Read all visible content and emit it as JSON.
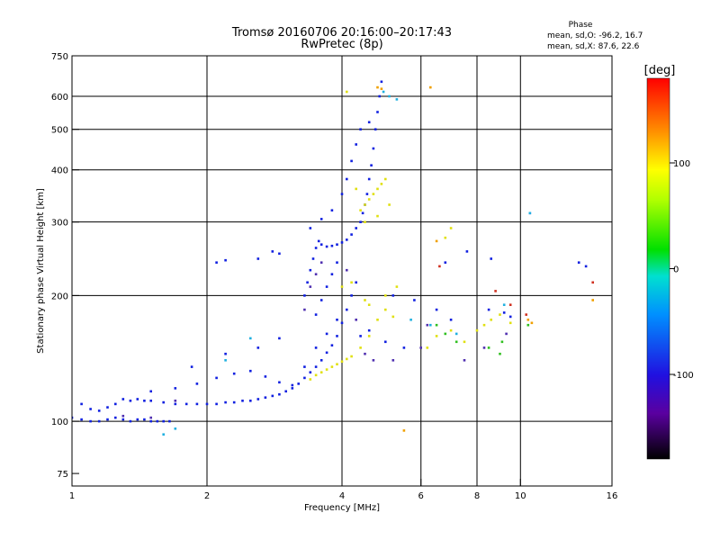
{
  "header": {
    "title_line1": "Tromsø 20160706 20:16:00–20:17:43",
    "title_line2": "RwPretec (8p)"
  },
  "phase_stats": {
    "heading": "Phase",
    "line_o": "mean, sd,O: -96.2, 16.7",
    "line_x": "mean, sd,X: 87.6, 22.6"
  },
  "colorbar": {
    "unit": "[deg]",
    "ticks": [
      {
        "value": 100,
        "label": "100"
      },
      {
        "value": 0,
        "label": "0"
      },
      {
        "value": -100,
        "label": "-100"
      }
    ],
    "range": [
      -180,
      180
    ]
  },
  "chart_data": {
    "type": "scatter",
    "xlabel": "Frequency [MHz]",
    "ylabel": "Stationary phase Virtual Height [km]",
    "xscale": "log",
    "yscale": "log",
    "xlim": [
      1,
      16
    ],
    "ylim": [
      70,
      750
    ],
    "xticks": [
      {
        "value": 1,
        "label": "1"
      },
      {
        "value": 2,
        "label": "2"
      },
      {
        "value": 4,
        "label": "4"
      },
      {
        "value": 6,
        "label": "6"
      },
      {
        "value": 8,
        "label": "8"
      },
      {
        "value": 10,
        "label": "10"
      },
      {
        "value": 16,
        "label": "16"
      }
    ],
    "xgrid": [
      2,
      4,
      6,
      8,
      10
    ],
    "yticks": [
      {
        "value": 75,
        "label": "75"
      },
      {
        "value": 100,
        "label": "100"
      },
      {
        "value": 200,
        "label": "200"
      },
      {
        "value": 300,
        "label": "300"
      },
      {
        "value": 400,
        "label": "400"
      },
      {
        "value": 500,
        "label": "500"
      },
      {
        "value": 600,
        "label": "600"
      },
      {
        "value": 750,
        "label": "750"
      }
    ],
    "ygrid": [
      100,
      200,
      300,
      400,
      500,
      600
    ],
    "grid": true,
    "color_variable": "phase [deg]",
    "series": [
      {
        "color": "#1020e0",
        "points": [
          [
            1,
            102
          ],
          [
            1.05,
            101
          ],
          [
            1.1,
            100
          ],
          [
            1.15,
            100
          ],
          [
            1.2,
            101
          ],
          [
            1.25,
            102
          ],
          [
            1.3,
            101
          ],
          [
            1.35,
            100
          ],
          [
            1.4,
            101
          ],
          [
            1.45,
            101
          ],
          [
            1.5,
            100
          ],
          [
            1.55,
            100
          ],
          [
            1.6,
            100
          ],
          [
            1.65,
            100
          ],
          [
            1.05,
            110
          ],
          [
            1.1,
            107
          ],
          [
            1.15,
            106
          ],
          [
            1.2,
            108
          ],
          [
            1.25,
            110
          ],
          [
            1.3,
            113
          ],
          [
            1.35,
            112
          ],
          [
            1.4,
            113
          ],
          [
            1.45,
            112
          ],
          [
            1.5,
            112
          ],
          [
            1.6,
            111
          ],
          [
            1.7,
            110
          ],
          [
            1.8,
            110
          ],
          [
            1.9,
            110
          ],
          [
            2,
            110
          ],
          [
            2.1,
            110
          ],
          [
            2.2,
            111
          ],
          [
            2.3,
            111
          ],
          [
            2.4,
            112
          ],
          [
            2.5,
            112
          ],
          [
            2.6,
            113
          ],
          [
            2.7,
            114
          ],
          [
            2.8,
            115
          ],
          [
            2.9,
            116
          ],
          [
            3,
            118
          ],
          [
            3.1,
            120
          ],
          [
            3.2,
            123
          ],
          [
            3.3,
            127
          ],
          [
            3.4,
            131
          ],
          [
            3.5,
            135
          ],
          [
            3.6,
            140
          ],
          [
            3.7,
            146
          ],
          [
            3.8,
            152
          ],
          [
            3.9,
            160
          ],
          [
            4,
            172
          ],
          [
            4.1,
            185
          ],
          [
            4.2,
            200
          ],
          [
            4.3,
            215
          ],
          [
            1.5,
            118
          ],
          [
            1.7,
            120
          ],
          [
            1.9,
            123
          ],
          [
            2.1,
            127
          ],
          [
            2.3,
            130
          ],
          [
            2.5,
            132
          ],
          [
            2.7,
            128
          ],
          [
            2.9,
            124
          ],
          [
            3.1,
            122
          ],
          [
            3.3,
            135
          ],
          [
            3.5,
            150
          ],
          [
            3.7,
            162
          ],
          [
            3.9,
            175
          ],
          [
            3.3,
            200
          ],
          [
            3.35,
            215
          ],
          [
            3.4,
            230
          ],
          [
            3.45,
            245
          ],
          [
            3.5,
            260
          ],
          [
            3.55,
            270
          ],
          [
            3.6,
            265
          ],
          [
            3.7,
            262
          ],
          [
            3.8,
            263
          ],
          [
            3.9,
            265
          ],
          [
            4,
            268
          ],
          [
            4.1,
            272
          ],
          [
            4.2,
            280
          ],
          [
            4.3,
            290
          ],
          [
            4.4,
            300
          ],
          [
            4.45,
            315
          ],
          [
            4.5,
            330
          ],
          [
            4.55,
            350
          ],
          [
            4.6,
            380
          ],
          [
            4.65,
            410
          ],
          [
            4.7,
            450
          ],
          [
            4.75,
            500
          ],
          [
            4.8,
            550
          ],
          [
            4.85,
            600
          ],
          [
            4.9,
            650
          ],
          [
            3.8,
            320
          ],
          [
            4,
            350
          ],
          [
            4.1,
            380
          ],
          [
            4.2,
            420
          ],
          [
            4.3,
            460
          ],
          [
            4.4,
            500
          ],
          [
            4.6,
            520
          ],
          [
            3.5,
            180
          ],
          [
            3.6,
            195
          ],
          [
            3.7,
            210
          ],
          [
            3.8,
            225
          ],
          [
            3.9,
            240
          ],
          [
            3.4,
            290
          ],
          [
            3.6,
            305
          ],
          [
            2.1,
            240
          ],
          [
            2.2,
            243
          ],
          [
            2.8,
            255
          ],
          [
            2.9,
            252
          ],
          [
            2.6,
            245
          ],
          [
            1.85,
            135
          ],
          [
            2.2,
            145
          ],
          [
            2.6,
            150
          ],
          [
            2.9,
            158
          ],
          [
            4.4,
            160
          ],
          [
            4.6,
            165
          ],
          [
            5,
            155
          ],
          [
            5.5,
            150
          ],
          [
            6.5,
            185
          ],
          [
            7,
            175
          ],
          [
            8.5,
            185
          ],
          [
            9.2,
            182
          ],
          [
            9.5,
            178
          ],
          [
            5.2,
            200
          ],
          [
            5.8,
            195
          ],
          [
            6.8,
            240
          ],
          [
            8.6,
            245
          ],
          [
            7.6,
            255
          ],
          [
            10.5,
            315
          ],
          [
            13.5,
            240
          ],
          [
            14,
            235
          ]
        ]
      },
      {
        "color": "#5030b0",
        "points": [
          [
            1.3,
            103
          ],
          [
            1.5,
            102
          ],
          [
            1.7,
            112
          ],
          [
            3.3,
            185
          ],
          [
            3.4,
            210
          ],
          [
            3.5,
            225
          ],
          [
            3.6,
            240
          ],
          [
            4.1,
            230
          ],
          [
            4.3,
            175
          ],
          [
            4.5,
            145
          ],
          [
            4.7,
            140
          ],
          [
            5.2,
            140
          ],
          [
            6,
            150
          ],
          [
            6.2,
            170
          ],
          [
            7.5,
            140
          ],
          [
            8.3,
            150
          ],
          [
            9.3,
            162
          ]
        ]
      },
      {
        "color": "#20b0e0",
        "points": [
          [
            1.7,
            96
          ],
          [
            1.6,
            93
          ],
          [
            2.2,
            140
          ],
          [
            2.5,
            158
          ],
          [
            4.95,
            615
          ],
          [
            5.1,
            600
          ],
          [
            5.3,
            590
          ],
          [
            5.7,
            175
          ],
          [
            6.3,
            170
          ],
          [
            7.2,
            162
          ],
          [
            9.2,
            190
          ],
          [
            10.5,
            315
          ]
        ]
      },
      {
        "color": "#e0e010",
        "points": [
          [
            3.4,
            126
          ],
          [
            3.5,
            129
          ],
          [
            3.6,
            131
          ],
          [
            3.7,
            133
          ],
          [
            3.8,
            135
          ],
          [
            3.9,
            137
          ],
          [
            4,
            139
          ],
          [
            4.1,
            141
          ],
          [
            4.2,
            143
          ],
          [
            4.4,
            150
          ],
          [
            4.6,
            160
          ],
          [
            4.8,
            175
          ],
          [
            5,
            185
          ],
          [
            5.2,
            178
          ],
          [
            4.4,
            320
          ],
          [
            4.5,
            330
          ],
          [
            4.6,
            340
          ],
          [
            4.7,
            350
          ],
          [
            4.8,
            360
          ],
          [
            4.9,
            370
          ],
          [
            5,
            380
          ],
          [
            4.3,
            360
          ],
          [
            4.5,
            300
          ],
          [
            4.8,
            310
          ],
          [
            5.1,
            330
          ],
          [
            4,
            210
          ],
          [
            4.2,
            215
          ],
          [
            4.5,
            195
          ],
          [
            4.6,
            190
          ],
          [
            5,
            200
          ],
          [
            5.3,
            210
          ],
          [
            4.1,
            615
          ],
          [
            6.8,
            275
          ],
          [
            7,
            290
          ],
          [
            6.2,
            150
          ],
          [
            6.5,
            160
          ],
          [
            7,
            165
          ],
          [
            7.5,
            155
          ],
          [
            8,
            165
          ],
          [
            8.3,
            170
          ],
          [
            8.6,
            175
          ],
          [
            9,
            180
          ],
          [
            9.5,
            172
          ]
        ]
      },
      {
        "color": "#f0a000",
        "points": [
          [
            5.5,
            95
          ],
          [
            4.8,
            630
          ],
          [
            4.9,
            625
          ],
          [
            6.3,
            630
          ],
          [
            6.5,
            270
          ],
          [
            10.4,
            175
          ],
          [
            10.6,
            172
          ],
          [
            14.5,
            195
          ]
        ]
      },
      {
        "color": "#30c020",
        "points": [
          [
            6.5,
            170
          ],
          [
            6.8,
            162
          ],
          [
            7.2,
            155
          ],
          [
            8.5,
            150
          ],
          [
            9,
            145
          ],
          [
            9.1,
            155
          ],
          [
            10.4,
            170
          ]
        ]
      },
      {
        "color": "#d03020",
        "points": [
          [
            6.6,
            235
          ],
          [
            8.8,
            205
          ],
          [
            9.5,
            190
          ],
          [
            10.3,
            180
          ],
          [
            14.5,
            215
          ]
        ]
      }
    ]
  }
}
